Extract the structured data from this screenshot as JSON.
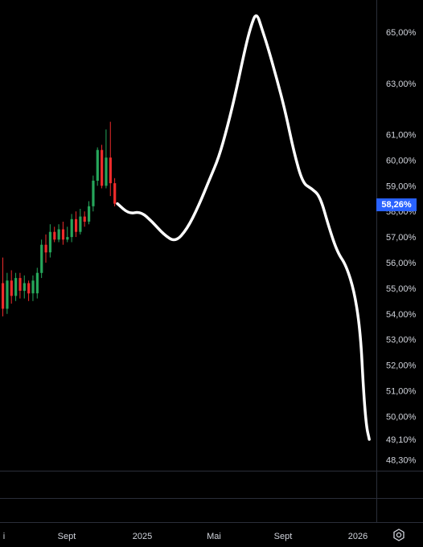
{
  "chart_data": {
    "type": "candlestick+line",
    "y_axis_ticks": [
      "65,00%",
      "63,00%",
      "61,00%",
      "60,00%",
      "59,00%",
      "58,00%",
      "57,00%",
      "56,00%",
      "55,00%",
      "54,00%",
      "53,00%",
      "52,00%",
      "51,00%",
      "50,00%",
      "49,10%",
      "48,30%"
    ],
    "y_axis_tick_values": [
      65,
      63,
      61,
      60,
      59,
      58,
      57,
      56,
      55,
      54,
      53,
      52,
      51,
      50,
      49.1,
      48.3
    ],
    "last_price_label": "58,26%",
    "last_price_value": 58.26,
    "x_axis_ticks": [
      "i",
      "Sept",
      "2025",
      "Mai",
      "Sept",
      "2026"
    ],
    "candles": [
      {
        "o": 55.2,
        "h": 56.2,
        "l": 53.9,
        "c": 54.2
      },
      {
        "o": 54.2,
        "h": 55.6,
        "l": 54.0,
        "c": 55.3
      },
      {
        "o": 55.3,
        "h": 55.7,
        "l": 54.4,
        "c": 54.7
      },
      {
        "o": 54.7,
        "h": 55.6,
        "l": 54.5,
        "c": 55.4
      },
      {
        "o": 55.4,
        "h": 55.6,
        "l": 54.6,
        "c": 54.9
      },
      {
        "o": 54.9,
        "h": 55.5,
        "l": 54.6,
        "c": 55.2
      },
      {
        "o": 55.2,
        "h": 55.3,
        "l": 54.5,
        "c": 54.8
      },
      {
        "o": 54.8,
        "h": 55.5,
        "l": 54.5,
        "c": 55.3
      },
      {
        "o": 54.8,
        "h": 55.8,
        "l": 54.6,
        "c": 55.6
      },
      {
        "o": 55.6,
        "h": 56.9,
        "l": 55.4,
        "c": 56.7
      },
      {
        "o": 56.7,
        "h": 57.1,
        "l": 56.0,
        "c": 56.4
      },
      {
        "o": 56.4,
        "h": 57.5,
        "l": 56.2,
        "c": 57.2
      },
      {
        "o": 57.2,
        "h": 57.4,
        "l": 56.8,
        "c": 56.9
      },
      {
        "o": 56.9,
        "h": 57.5,
        "l": 56.8,
        "c": 57.3
      },
      {
        "o": 57.3,
        "h": 57.6,
        "l": 56.7,
        "c": 56.9
      },
      {
        "o": 56.9,
        "h": 57.4,
        "l": 56.8,
        "c": 57.0
      },
      {
        "o": 57.0,
        "h": 57.9,
        "l": 56.8,
        "c": 57.7
      },
      {
        "o": 57.7,
        "h": 58.0,
        "l": 57.0,
        "c": 57.2
      },
      {
        "o": 57.2,
        "h": 58.1,
        "l": 57.1,
        "c": 57.8
      },
      {
        "o": 57.8,
        "h": 58.0,
        "l": 57.4,
        "c": 57.6
      },
      {
        "o": 57.6,
        "h": 58.4,
        "l": 57.5,
        "c": 58.2
      },
      {
        "o": 58.2,
        "h": 59.4,
        "l": 58.0,
        "c": 59.2
      },
      {
        "o": 59.2,
        "h": 60.5,
        "l": 59.0,
        "c": 60.4
      },
      {
        "o": 60.4,
        "h": 60.6,
        "l": 58.9,
        "c": 59.0
      },
      {
        "o": 59.0,
        "h": 61.2,
        "l": 58.9,
        "c": 60.1
      },
      {
        "o": 60.1,
        "h": 61.5,
        "l": 58.6,
        "c": 59.1
      },
      {
        "o": 59.1,
        "h": 59.3,
        "l": 58.2,
        "c": 58.3
      }
    ],
    "drawn_line": [
      [
        0,
        58.3
      ],
      [
        2,
        57.9
      ],
      [
        4,
        58.0
      ],
      [
        6,
        57.6
      ],
      [
        8,
        57.1
      ],
      [
        10,
        56.8
      ],
      [
        12,
        57.3
      ],
      [
        14,
        58.2
      ],
      [
        16,
        59.3
      ],
      [
        17.5,
        60.1
      ],
      [
        19,
        61.3
      ],
      [
        20.5,
        62.7
      ],
      [
        22,
        64.3
      ],
      [
        23,
        65.2
      ],
      [
        24,
        65.8
      ],
      [
        25,
        65.1
      ],
      [
        26,
        64.4
      ],
      [
        27.5,
        63.2
      ],
      [
        29,
        61.9
      ],
      [
        30.5,
        60.3
      ],
      [
        32,
        59.1
      ],
      [
        33.5,
        58.9
      ],
      [
        35,
        58.6
      ],
      [
        36.5,
        57.4
      ],
      [
        38,
        56.4
      ],
      [
        39.5,
        55.9
      ],
      [
        41,
        54.8
      ],
      [
        42,
        53.2
      ],
      [
        42.5,
        51.0
      ],
      [
        43,
        49.6
      ],
      [
        43.5,
        49.1
      ]
    ],
    "colors": {
      "up": "#26a65b",
      "down": "#ef2b2b",
      "line": "#ffffff",
      "last_price_bg": "#2962ff",
      "background": "#000000",
      "grid": "#2a2e39"
    },
    "grid": false
  }
}
